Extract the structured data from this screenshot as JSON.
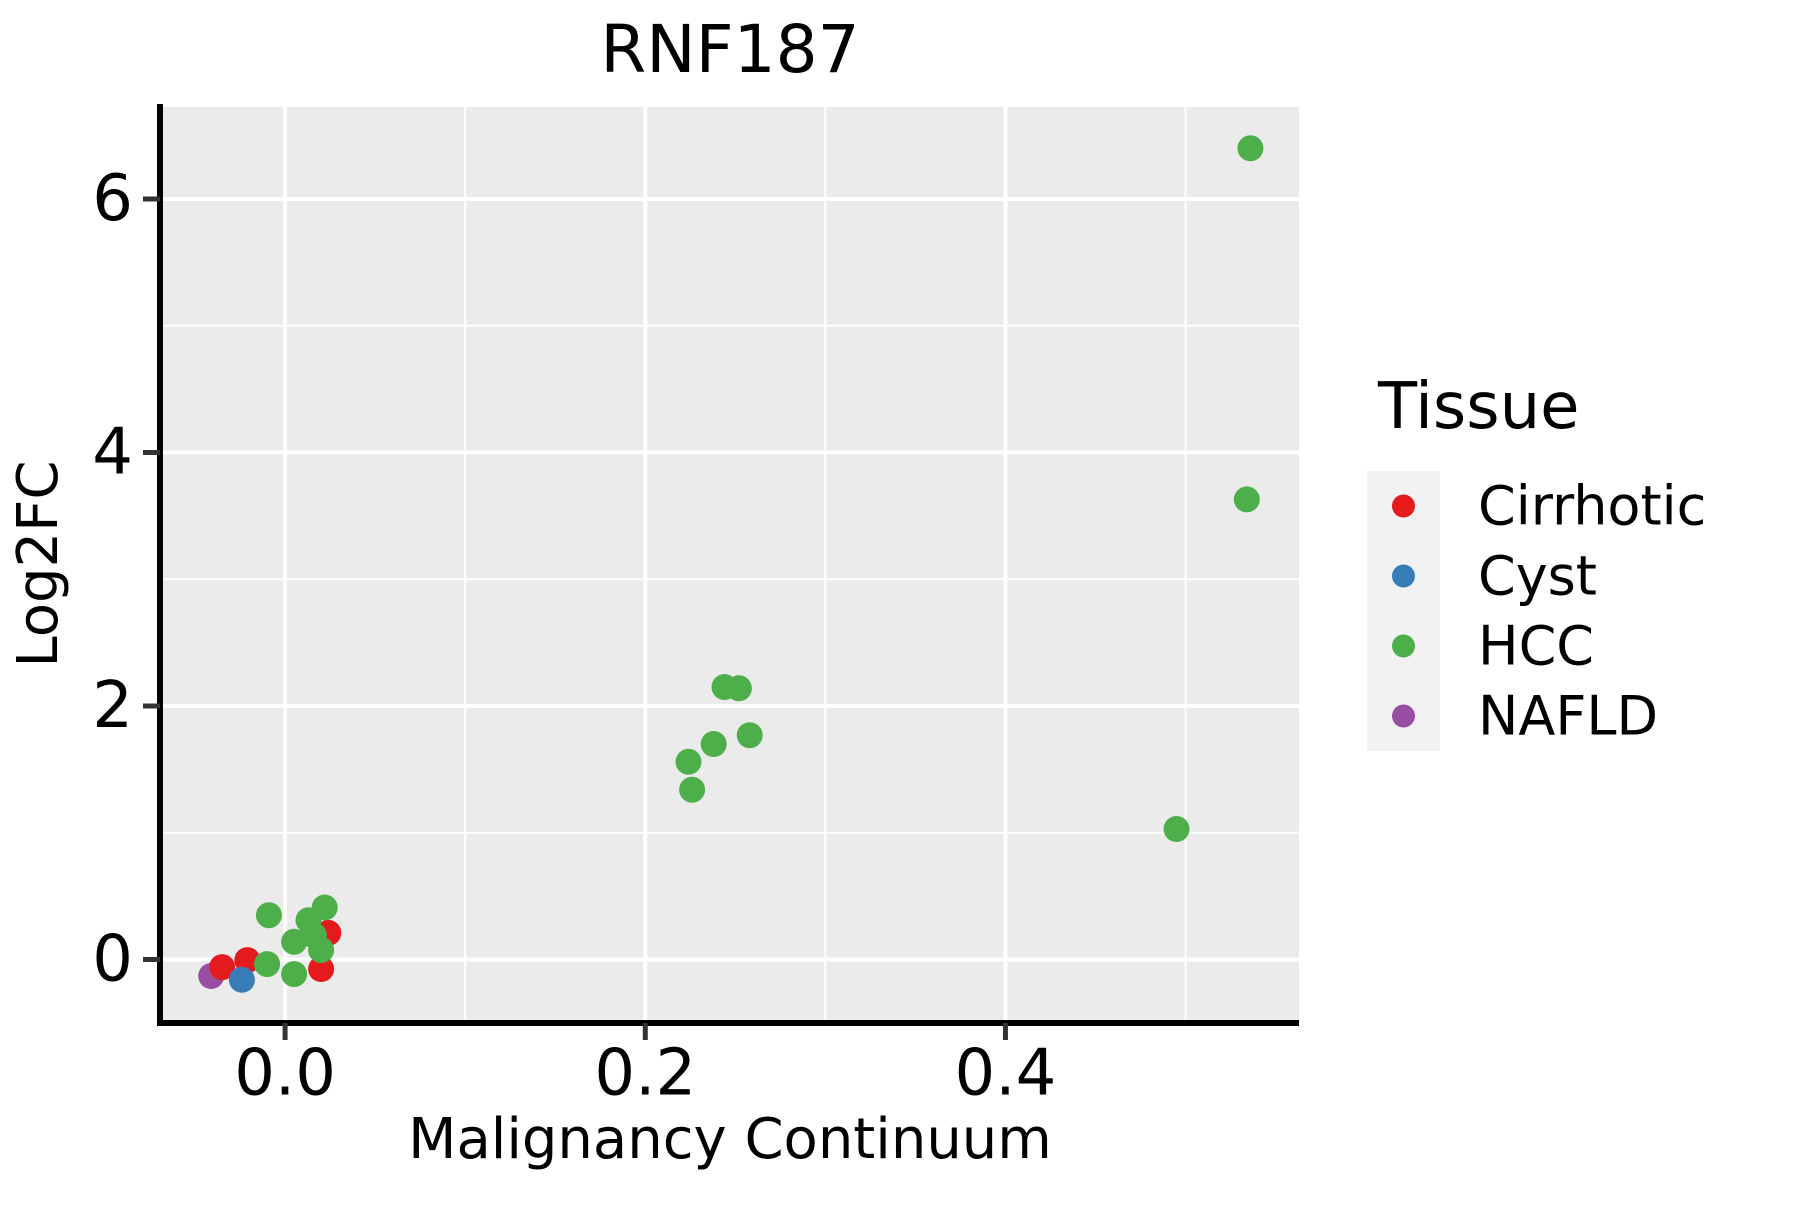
{
  "title": "RNF187",
  "axes": {
    "x": {
      "label": "Malignancy Continuum",
      "ticks": [
        {
          "v": 0.0,
          "label": "0.0"
        },
        {
          "v": 0.2,
          "label": "0.2"
        },
        {
          "v": 0.4,
          "label": "0.4"
        }
      ],
      "minor": [
        0.1,
        0.3,
        0.5
      ],
      "range": [
        -0.0689,
        0.563
      ]
    },
    "y": {
      "label": "Log2FC",
      "ticks": [
        {
          "v": 0,
          "label": "0"
        },
        {
          "v": 2,
          "label": "2"
        },
        {
          "v": 4,
          "label": "4"
        },
        {
          "v": 6,
          "label": "6"
        }
      ],
      "minor": [
        1,
        3,
        5
      ],
      "range": [
        -0.493,
        6.726
      ]
    }
  },
  "legend": {
    "title": "Tissue",
    "entries": [
      {
        "label": "Cirrhotic",
        "color": "#e41a1c"
      },
      {
        "label": "Cyst",
        "color": "#377eb8"
      },
      {
        "label": "HCC",
        "color": "#4daf4a"
      },
      {
        "label": "NAFLD",
        "color": "#984ea3"
      }
    ]
  },
  "colors": {
    "panel_bg": "#ebebeb",
    "grid": "#ffffff",
    "axis_line": "#000000",
    "tick_mark": "#333333",
    "legend_key_bg": "#f2f2f2",
    "text": "#000000"
  },
  "chart_data": {
    "type": "scatter",
    "title": "RNF187",
    "xlabel": "Malignancy Continuum",
    "ylabel": "Log2FC",
    "xlim": [
      -0.0689,
      0.563
    ],
    "ylim": [
      -0.493,
      6.726
    ],
    "x_ticks": [
      0.0,
      0.2,
      0.4
    ],
    "y_ticks": [
      0,
      2,
      4,
      6
    ],
    "grid": "on",
    "legend_position": "right",
    "legend_title": "Tissue",
    "legend_order": [
      "Cirrhotic",
      "Cyst",
      "HCC",
      "NAFLD"
    ],
    "point_radius_px": 13,
    "series": [
      {
        "name": "NAFLD",
        "color": "#984ea3",
        "points": [
          [
            -0.041,
            -0.13
          ]
        ]
      },
      {
        "name": "Cirrhotic",
        "color": "#e41a1c",
        "points": [
          [
            -0.035,
            -0.06
          ],
          [
            -0.021,
            -0.005
          ],
          [
            0.024,
            0.21
          ],
          [
            0.02,
            -0.075
          ]
        ]
      },
      {
        "name": "Cyst",
        "color": "#377eb8",
        "points": [
          [
            -0.024,
            -0.16
          ]
        ]
      },
      {
        "name": "HCC",
        "color": "#4daf4a",
        "points": [
          [
            -0.01,
            -0.036
          ],
          [
            -0.009,
            0.35
          ],
          [
            0.005,
            0.14
          ],
          [
            0.005,
            -0.115
          ],
          [
            0.013,
            0.31
          ],
          [
            0.016,
            0.19
          ],
          [
            0.022,
            0.41
          ],
          [
            0.02,
            0.075
          ],
          [
            0.224,
            1.56
          ],
          [
            0.226,
            1.34
          ],
          [
            0.238,
            1.7
          ],
          [
            0.244,
            2.15
          ],
          [
            0.252,
            2.14
          ],
          [
            0.258,
            1.77
          ],
          [
            0.495,
            1.03
          ],
          [
            0.534,
            3.63
          ],
          [
            0.536,
            6.4
          ]
        ]
      }
    ]
  }
}
